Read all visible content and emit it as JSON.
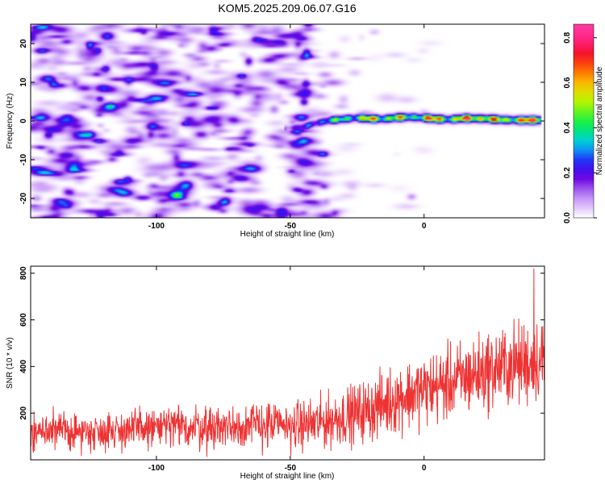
{
  "figure": {
    "title": "KOM5.2025.209.06.07.G16"
  },
  "chart_data": [
    {
      "type": "heatmap",
      "xlabel": "Height of straight line (km)",
      "ylabel": "Frequency (Hz)",
      "xlim": [
        -147,
        45
      ],
      "ylim": [
        -25,
        25
      ],
      "x_ticks": [
        "-100",
        "-50",
        "0"
      ],
      "x_tick_values": [
        -100,
        -50,
        0
      ],
      "y_ticks": [
        "-20",
        "-10",
        "0",
        "10",
        "20"
      ],
      "y_tick_values": [
        -20,
        -10,
        0,
        10,
        20
      ],
      "colorbar": {
        "label": "Normalized spectral amplitude",
        "range": [
          0.0,
          0.86
        ],
        "ticks": [
          "0.0",
          "0.2",
          "0.4",
          "0.6",
          "0.8"
        ],
        "tick_values": [
          0.0,
          0.2,
          0.4,
          0.6,
          0.8
        ],
        "colormap": "rainbow (white, violet, blue, cyan, green, yellow, orange, red, pink)"
      },
      "noise_region_x": [
        -147,
        -45
      ],
      "noise_level": 0.1,
      "signal_track": {
        "x": [
          -52,
          -45,
          -40,
          -35,
          -30,
          -25,
          -20,
          -15,
          -10,
          -5,
          0,
          5,
          10,
          15,
          20,
          25,
          30,
          35,
          44
        ],
        "frequency": [
          -2,
          -1.5,
          -0.5,
          0.2,
          0.5,
          0.8,
          0.6,
          0.5,
          0.9,
          1.0,
          0.8,
          0.5,
          0.4,
          0.7,
          0.6,
          0.5,
          0.3,
          0.2,
          0.2
        ],
        "amplitude": [
          0.2,
          0.25,
          0.35,
          0.45,
          0.5,
          0.55,
          0.7,
          0.6,
          0.65,
          0.5,
          0.7,
          0.75,
          0.6,
          0.75,
          0.8,
          0.7,
          0.65,
          0.75,
          0.8
        ]
      }
    },
    {
      "type": "line",
      "xlabel": "Height of straight line (km)",
      "ylabel": "SNR (10 * v/v)",
      "xlim": [
        -147,
        45
      ],
      "ylim": [
        0,
        830
      ],
      "x_ticks": [
        "-100",
        "-50",
        "0"
      ],
      "x_tick_values": [
        -100,
        -50,
        0
      ],
      "y_ticks": [
        "200",
        "400",
        "600",
        "800"
      ],
      "y_tick_values": [
        200,
        400,
        600,
        800
      ],
      "series_color": "#ee3333",
      "series": [
        {
          "x": [
            -147,
            -140,
            -130,
            -120,
            -110,
            -100,
            -90,
            -80,
            -70,
            -60,
            -50,
            -40,
            -30,
            -20,
            -10,
            0,
            10,
            20,
            30,
            40,
            45
          ],
          "mean": [
            120,
            125,
            120,
            125,
            130,
            140,
            140,
            140,
            145,
            150,
            145,
            155,
            185,
            215,
            265,
            300,
            330,
            370,
            400,
            420,
            430
          ],
          "spread": [
            60,
            60,
            60,
            60,
            65,
            70,
            75,
            75,
            75,
            80,
            75,
            85,
            90,
            100,
            110,
            115,
            120,
            125,
            130,
            140,
            140
          ]
        }
      ],
      "peak": {
        "x": 41,
        "y": 820
      }
    }
  ]
}
